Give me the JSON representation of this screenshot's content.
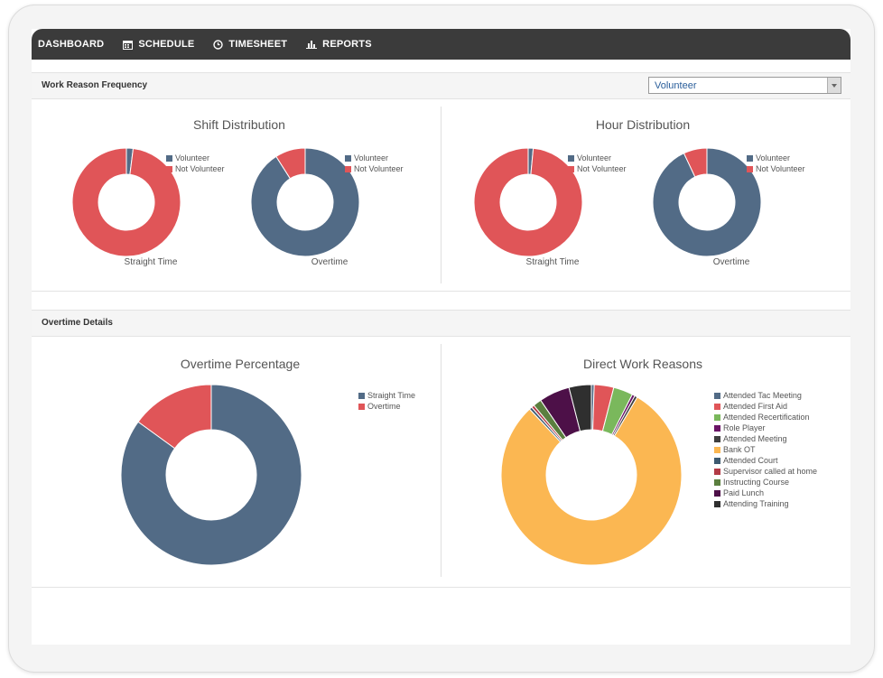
{
  "nav": {
    "items": [
      {
        "label": "DASHBOARD",
        "icon": "none"
      },
      {
        "label": "SCHEDULE",
        "icon": "calendar-icon"
      },
      {
        "label": "TIMESHEET",
        "icon": "clock-icon"
      },
      {
        "label": "REPORTS",
        "icon": "bar-chart-icon"
      }
    ]
  },
  "work_reason": {
    "title": "Work Reason Frequency",
    "select_value": "Volunteer"
  },
  "colors": {
    "red": "#e05558",
    "blue": "#526b86",
    "green": "#7ab85c",
    "purple": "#6a1466",
    "darkgray": "#3f3f3f",
    "orange": "#fbb752",
    "slate": "#3d5a70",
    "brickred": "#b33b46",
    "olive": "#5b7f3f",
    "darkpurple": "#4d1048",
    "charcoal": "#2f2f2f"
  },
  "shift_distribution": {
    "title": "Shift Distribution",
    "legend": [
      "Volunteer",
      "Not Volunteer"
    ],
    "charts": [
      {
        "caption": "Straight Time",
        "values": [
          2,
          98
        ]
      },
      {
        "caption": "Overtime",
        "values": [
          91,
          9
        ]
      }
    ]
  },
  "hour_distribution": {
    "title": "Hour Distribution",
    "legend": [
      "Volunteer",
      "Not Volunteer"
    ],
    "charts": [
      {
        "caption": "Straight Time",
        "values": [
          1.5,
          98.5
        ]
      },
      {
        "caption": "Overtime",
        "values": [
          93,
          7
        ]
      }
    ]
  },
  "overtime_details": {
    "title": "Overtime Details"
  },
  "overtime_percentage": {
    "title": "Overtime Percentage",
    "legend": [
      "Straight Time",
      "Overtime"
    ],
    "values": [
      85,
      15
    ]
  },
  "direct_work_reasons": {
    "title": "Direct Work Reasons",
    "legend": [
      "Attended Tac Meeting",
      "Attended First Aid",
      "Attended Recertification",
      "Role Player",
      "Attended Meeting",
      "Bank OT",
      "Attended Court",
      "Supervisor called at home",
      "Instructing Course",
      "Paid Lunch",
      "Attending Training"
    ],
    "values": [
      0.5,
      3.5,
      3.5,
      0.5,
      0.5,
      79.5,
      0.5,
      0.5,
      1.5,
      5.5,
      4
    ]
  }
}
